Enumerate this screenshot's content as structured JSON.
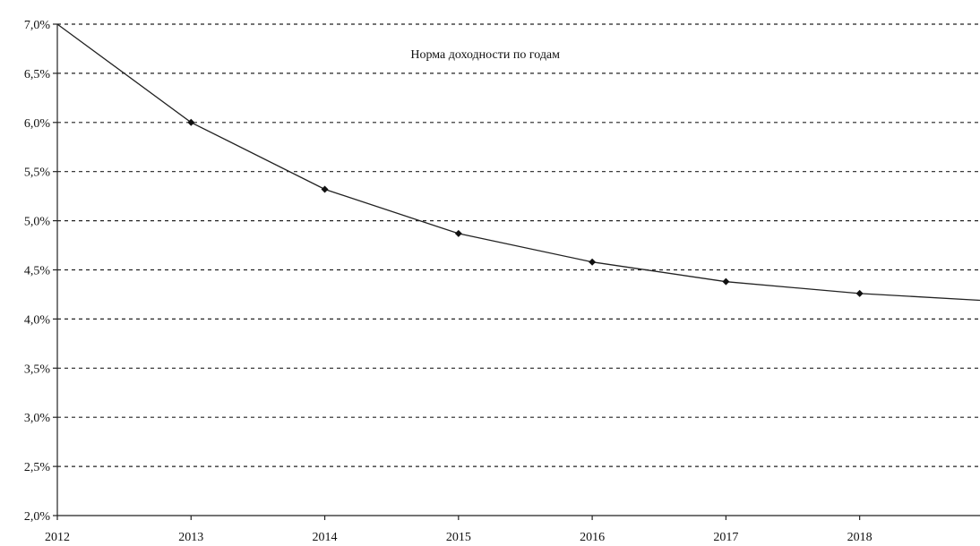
{
  "chart_data": {
    "type": "line",
    "title": "Норма доходности по годам",
    "xlabel": "",
    "ylabel": "",
    "x": [
      2012,
      2013,
      2014,
      2015,
      2016,
      2017,
      2018
    ],
    "x_tick_labels": [
      "2012",
      "2013",
      "2014",
      "2015",
      "2016",
      "2017",
      "2018"
    ],
    "xlim": [
      2012,
      2018.9
    ],
    "ylim": [
      2.0,
      7.0
    ],
    "y_ticks": [
      2.0,
      2.5,
      3.0,
      3.5,
      4.0,
      4.5,
      5.0,
      5.5,
      6.0,
      6.5,
      7.0
    ],
    "y_tick_labels": [
      "2,0%",
      "2,5%",
      "3,0%",
      "3,5%",
      "4,0%",
      "4,5%",
      "5,0%",
      "5,5%",
      "6,0%",
      "6,5%",
      "7,0%"
    ],
    "grid": true,
    "legend": "none",
    "series": [
      {
        "line_points": [
          {
            "x": 2012,
            "y": 7.0
          },
          {
            "x": 2013,
            "y": 6.0
          },
          {
            "x": 2014,
            "y": 5.32
          },
          {
            "x": 2015,
            "y": 4.87
          },
          {
            "x": 2016,
            "y": 4.58
          },
          {
            "x": 2017,
            "y": 4.38
          },
          {
            "x": 2018,
            "y": 4.26
          },
          {
            "x": 2018.9,
            "y": 4.19
          }
        ],
        "markers": [
          {
            "x": 2013,
            "y": 6.0
          },
          {
            "x": 2014,
            "y": 5.32
          },
          {
            "x": 2015,
            "y": 4.87
          },
          {
            "x": 2016,
            "y": 4.58
          },
          {
            "x": 2017,
            "y": 4.38
          },
          {
            "x": 2018,
            "y": 4.26
          }
        ],
        "color": "#222222"
      }
    ]
  }
}
